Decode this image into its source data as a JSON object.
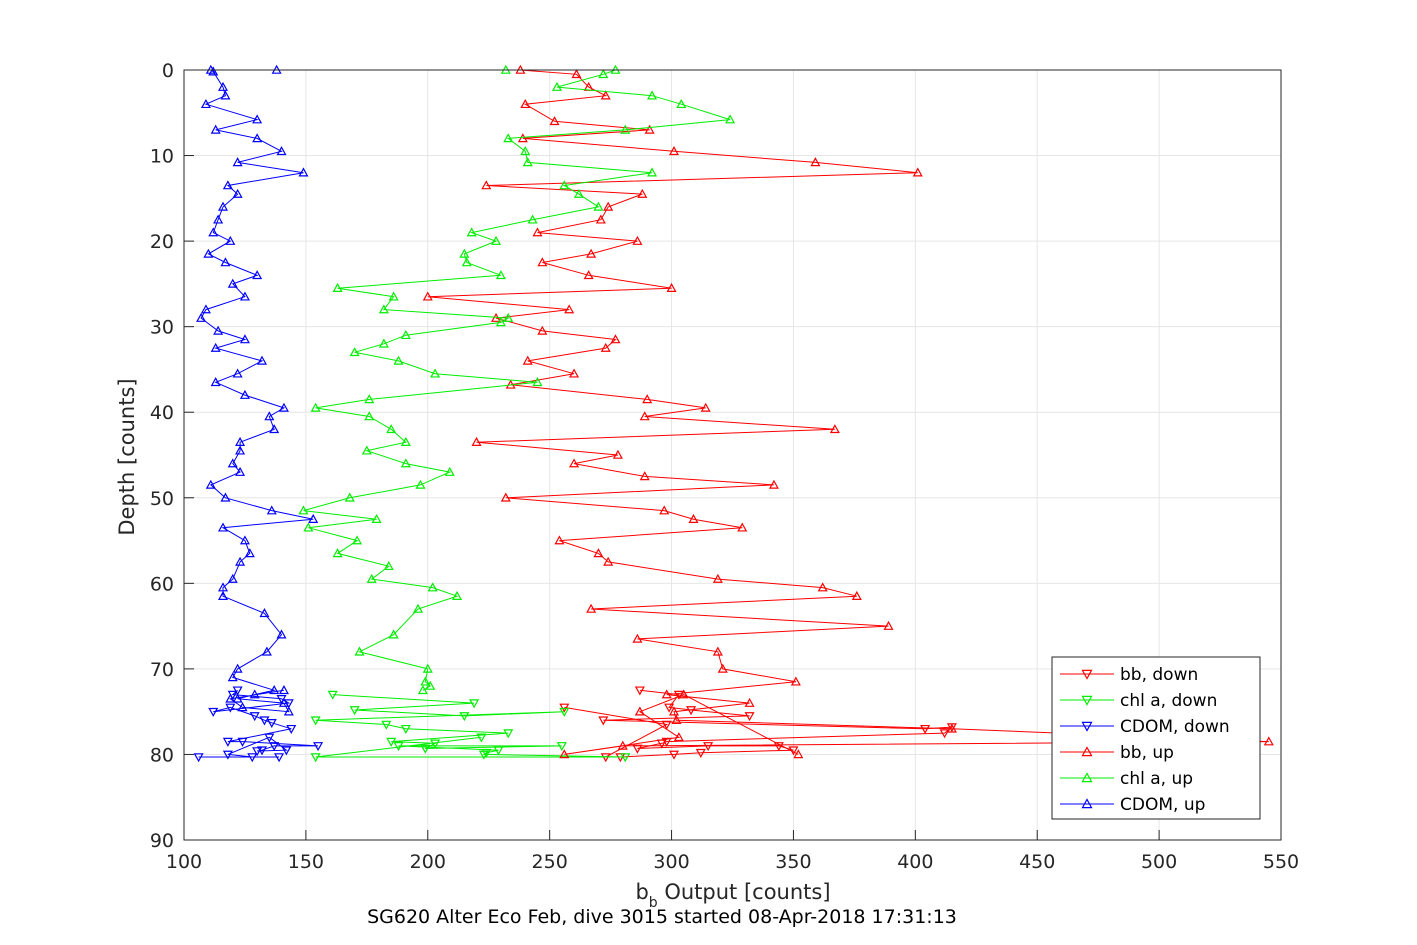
{
  "chart_data": {
    "type": "line",
    "title": "",
    "xlabel_main": "b",
    "xlabel_sub": "b",
    "xlabel_rest": " Output [counts]",
    "ylabel": "Depth [counts]",
    "caption": "SG620 Alter Eco Feb, dive 3015 started 08-Apr-2018 17:31:13",
    "xlim": [
      100,
      550
    ],
    "ylim": [
      0,
      90
    ],
    "y_reversed": true,
    "grid": true,
    "legend_position": "bottom-right",
    "xticks": [
      "100",
      "150",
      "200",
      "250",
      "300",
      "350",
      "400",
      "450",
      "500",
      "550"
    ],
    "yticks": [
      "0",
      "10",
      "20",
      "30",
      "40",
      "50",
      "60",
      "70",
      "80",
      "90"
    ],
    "series": [
      {
        "name": "bb, down",
        "color": "#ff0000",
        "marker": "triangle-down",
        "x": [
          287,
          303,
          299,
          308,
          332,
          272,
          404,
          415,
          412,
          298,
          296,
          286,
          315,
          344,
          350,
          312,
          301,
          279,
          273,
          298,
          256
        ],
        "y": [
          72.5,
          73,
          74.5,
          74.8,
          75.5,
          76,
          77,
          76.8,
          77.5,
          78.5,
          78.7,
          79.3,
          79,
          79,
          79.5,
          79.8,
          80,
          80.3,
          80.3,
          76.5,
          74.5
        ]
      },
      {
        "name": "chl a, down",
        "color": "#00ee00",
        "marker": "triangle-down",
        "x": [
          161,
          219,
          170,
          215,
          256,
          154,
          183,
          191,
          233,
          185,
          203,
          199,
          255,
          188,
          229,
          224,
          223,
          281,
          154,
          222
        ],
        "y": [
          73,
          74,
          74.8,
          75.5,
          75,
          76,
          76.5,
          77,
          77.5,
          78.5,
          78.7,
          79.3,
          79,
          79,
          79.5,
          79.8,
          80,
          80.3,
          80.3,
          78
        ]
      },
      {
        "name": "CDOM, down",
        "color": "#0000ff",
        "marker": "triangle-down",
        "x": [
          122,
          120,
          140,
          143,
          112,
          119,
          129,
          133,
          136,
          144,
          118,
          124,
          155,
          137,
          132,
          130,
          142,
          135,
          118,
          128,
          139,
          106
        ],
        "y": [
          72.5,
          73,
          73.5,
          74,
          75,
          74.5,
          75.5,
          76,
          76.3,
          77,
          78.5,
          78.5,
          79,
          79,
          79.5,
          79.6,
          79.5,
          78,
          80,
          80.3,
          80.3,
          80.3
        ]
      },
      {
        "name": "bb, up",
        "color": "#ff0000",
        "marker": "triangle-up",
        "x": [
          238,
          261,
          266,
          273,
          240,
          252,
          291,
          239,
          301,
          359,
          401,
          224,
          288,
          274,
          271,
          245,
          286,
          267,
          247,
          266,
          300,
          200,
          258,
          228,
          247,
          277,
          273,
          241,
          260,
          234,
          290,
          314,
          289,
          367,
          220,
          278,
          260,
          289,
          342,
          232,
          297,
          309,
          329,
          254,
          270,
          274,
          319,
          362,
          376,
          267,
          389,
          286,
          319,
          321,
          351,
          298,
          332,
          301,
          302,
          415,
          545,
          280,
          256,
          303,
          287,
          305,
          352
        ],
        "y": [
          0,
          0.5,
          2,
          3,
          4,
          6,
          7,
          8,
          9.5,
          10.8,
          12,
          13.5,
          14.5,
          16,
          17.5,
          19,
          20,
          21.5,
          22.5,
          24,
          25.5,
          26.5,
          28,
          29,
          30.5,
          31.5,
          32.5,
          34,
          35.5,
          36.8,
          38.5,
          39.5,
          40.5,
          42,
          43.5,
          45,
          46,
          47.5,
          48.5,
          50,
          51.5,
          52.5,
          53.5,
          55,
          56.5,
          57.5,
          59.5,
          60.5,
          61.5,
          63,
          65,
          66.5,
          68,
          70,
          71.5,
          73,
          74,
          75,
          76,
          77,
          78.5,
          79,
          80,
          78,
          75,
          73,
          80
        ]
      },
      {
        "name": "chl a, up",
        "color": "#00ee00",
        "marker": "triangle-up",
        "x": [
          232,
          277,
          272,
          253,
          292,
          304,
          324,
          281,
          233,
          240,
          241,
          292,
          256,
          262,
          270,
          243,
          218,
          228,
          215,
          216,
          230,
          163,
          186,
          182,
          233,
          230,
          191,
          182,
          170,
          188,
          203,
          245,
          176,
          154,
          176,
          185,
          191,
          175,
          191,
          209,
          197,
          168,
          149,
          179,
          151,
          171,
          163,
          184,
          177,
          202,
          212,
          196,
          186,
          172,
          200,
          199,
          201,
          198
        ],
        "y": [
          0,
          0,
          0.5,
          2,
          3,
          4,
          5.8,
          7,
          8,
          9.5,
          10.8,
          12,
          13.5,
          14.5,
          16,
          17.5,
          19,
          20,
          21.5,
          22.5,
          24,
          25.5,
          26.5,
          28,
          29,
          29.5,
          31,
          32,
          33,
          34,
          35.5,
          36.5,
          38.5,
          39.5,
          40.5,
          42,
          43.5,
          44.5,
          46,
          47,
          48.5,
          50,
          51.5,
          52.5,
          53.5,
          55,
          56.5,
          58,
          59.5,
          60.5,
          61.5,
          63,
          66,
          68,
          70,
          71.5,
          72,
          72.5
        ]
      },
      {
        "name": "CDOM, up",
        "color": "#0000ff",
        "marker": "triangle-up",
        "x": [
          138,
          111,
          112,
          116,
          117,
          109,
          130,
          113,
          130,
          140,
          122,
          149,
          118,
          122,
          116,
          114,
          112,
          119,
          110,
          117,
          130,
          120,
          125,
          109,
          107,
          114,
          125,
          113,
          132,
          122,
          113,
          125,
          141,
          135,
          137,
          123,
          123,
          120,
          123,
          111,
          117,
          136,
          153,
          116,
          125,
          127,
          123,
          120,
          116,
          116,
          133,
          140,
          134,
          122,
          120,
          137,
          129,
          122,
          141,
          143,
          124,
          119,
          141
        ],
        "y": [
          0,
          0,
          0.2,
          2,
          3,
          4,
          5.8,
          7,
          8,
          9.5,
          10.8,
          12,
          13.5,
          14.5,
          16,
          17.5,
          19,
          20,
          21.5,
          22.5,
          24,
          25,
          26.5,
          28,
          29,
          30.5,
          31.5,
          32.5,
          34,
          35.5,
          36.5,
          38,
          39.5,
          40.5,
          42,
          43.5,
          44.5,
          46,
          47,
          48.5,
          50,
          51.5,
          52.5,
          53.5,
          55,
          56.5,
          57.5,
          59.5,
          60.5,
          61.5,
          63.5,
          66,
          68,
          70,
          71,
          72.5,
          73,
          73.5,
          74,
          75,
          74.5,
          73.5,
          72.5
        ]
      }
    ]
  }
}
